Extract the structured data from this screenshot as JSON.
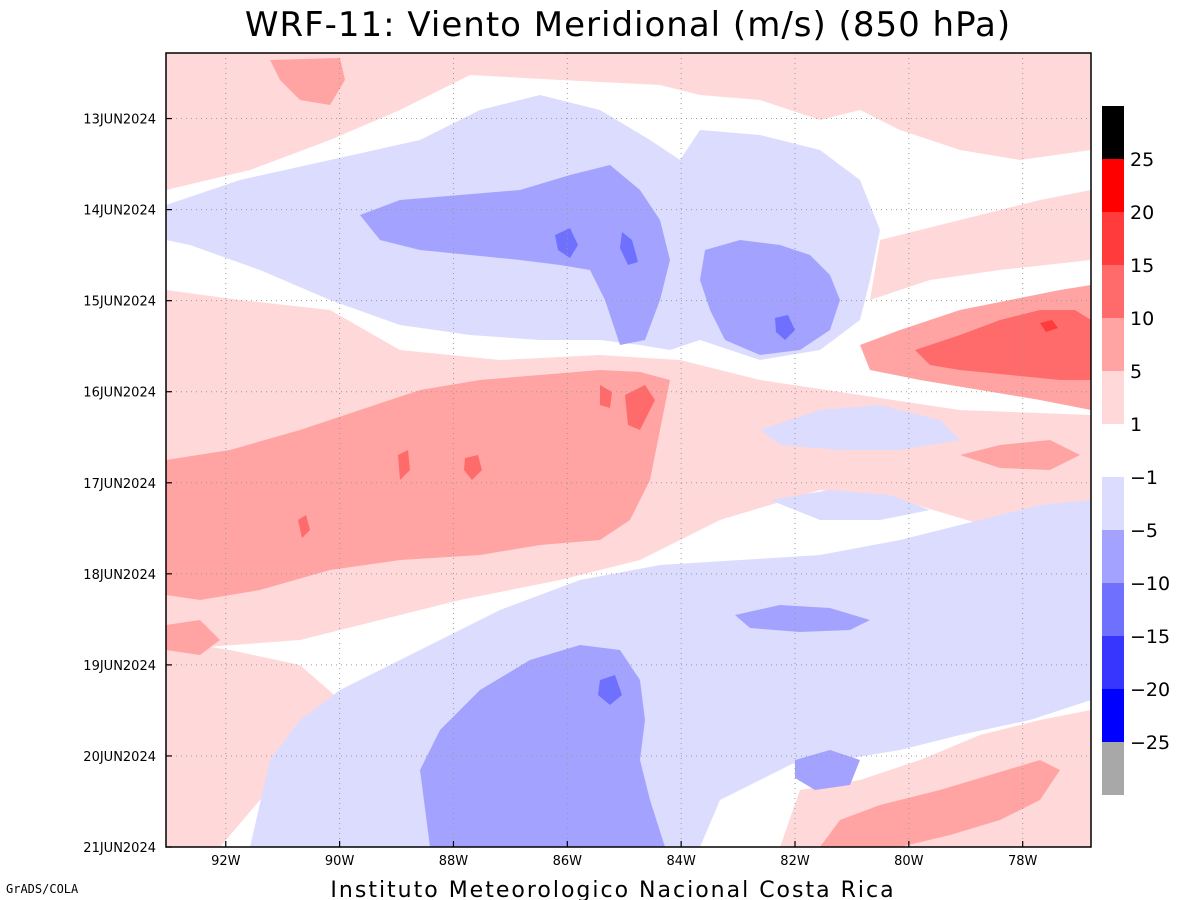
{
  "title": "WRF-11: Viento Meridional (m/s) (850 hPa)",
  "footer": "Instituto Meteorologico Nacional Costa Rica",
  "credit": "GrADS/COLA",
  "chart_data": {
    "type": "heatmap",
    "title": "WRF-11: Viento Meridional (m/s) (850 hPa)",
    "xlabel": "",
    "ylabel": "",
    "x_ticks": [
      {
        "value": -92,
        "label": "92W"
      },
      {
        "value": -90,
        "label": "90W"
      },
      {
        "value": -88,
        "label": "88W"
      },
      {
        "value": -86,
        "label": "86W"
      },
      {
        "value": -84,
        "label": "84W"
      },
      {
        "value": -82,
        "label": "82W"
      },
      {
        "value": -80,
        "label": "80W"
      },
      {
        "value": -78,
        "label": "78W"
      }
    ],
    "xlim": [
      -93.05,
      -76.8
    ],
    "y_ticks": [
      {
        "value": 0,
        "label": "13JUN2024"
      },
      {
        "value": 1,
        "label": "14JUN2024"
      },
      {
        "value": 2,
        "label": "15JUN2024"
      },
      {
        "value": 3,
        "label": "16JUN2024"
      },
      {
        "value": 4,
        "label": "17JUN2024"
      },
      {
        "value": 5,
        "label": "18JUN2024"
      },
      {
        "value": 6,
        "label": "19JUN2024"
      },
      {
        "value": 7,
        "label": "20JUN2024"
      },
      {
        "value": 8,
        "label": "21JUN2024"
      }
    ],
    "ylim": [
      8,
      -0.72
    ],
    "grid": true,
    "colorbar": {
      "positive": [
        {
          "min": 1,
          "max": 5,
          "color": "#ffd9d9",
          "label": "1"
        },
        {
          "min": 5,
          "max": 10,
          "color": "#ffa3a3",
          "label": "5"
        },
        {
          "min": 10,
          "max": 15,
          "color": "#ff6b6b",
          "label": "10"
        },
        {
          "min": 15,
          "max": 20,
          "color": "#ff3b3b",
          "label": "15"
        },
        {
          "min": 20,
          "max": 25,
          "color": "#ff0000",
          "label": "20"
        },
        {
          "min": 25,
          "max": 30,
          "color": "#000000",
          "label": "25"
        }
      ],
      "negative": [
        {
          "min": -5,
          "max": -1,
          "color": "#dcdcff",
          "label": "-1"
        },
        {
          "min": -10,
          "max": -5,
          "color": "#a3a3ff",
          "label": "-5"
        },
        {
          "min": -15,
          "max": -10,
          "color": "#7070ff",
          "label": "-10"
        },
        {
          "min": -20,
          "max": -15,
          "color": "#3636ff",
          "label": "-15"
        },
        {
          "min": -25,
          "max": -20,
          "color": "#0000ff",
          "label": "-20"
        },
        {
          "min": -30,
          "max": -25,
          "color": "#a8a8a8",
          "label": "-25"
        }
      ],
      "neutral_color": "#ffffff"
    },
    "regions": [
      {
        "id": "top-left-pink",
        "x": [
          -93.05,
          -76.8
        ],
        "y": [
          -0.72,
          0.5
        ],
        "value": 3
      },
      {
        "id": "band-14jun-blue",
        "x": [
          -91.5,
          -84.2
        ],
        "y": [
          0.3,
          2.3
        ],
        "value": -3
      },
      {
        "id": "core-14jun-blue",
        "x": [
          -89.0,
          -85.3
        ],
        "y": [
          0.9,
          1.5
        ],
        "value": -7
      },
      {
        "id": "core-15jun-east-blue",
        "x": [
          -83.0,
          -81.0
        ],
        "y": [
          1.4,
          2.6
        ],
        "value": -7
      },
      {
        "id": "jet-15jun-east-red",
        "x": [
          -80.5,
          -76.8
        ],
        "y": [
          1.9,
          3.1
        ],
        "value": 11
      },
      {
        "id": "band-16-18jun-red",
        "x": [
          -93.05,
          -84.5
        ],
        "y": [
          3.0,
          5.0
        ],
        "value": 7
      },
      {
        "id": "band-18-20jun-blue",
        "x": [
          -90.5,
          -83.5
        ],
        "y": [
          5.2,
          8.0
        ],
        "value": -4
      },
      {
        "id": "core-20jun-blue",
        "x": [
          -88.0,
          -84.8
        ],
        "y": [
          6.1,
          8.0
        ],
        "value": -7
      },
      {
        "id": "band-20jun-east-red",
        "x": [
          -82.5,
          -76.8
        ],
        "y": [
          7.0,
          8.0
        ],
        "value": 6
      }
    ]
  }
}
